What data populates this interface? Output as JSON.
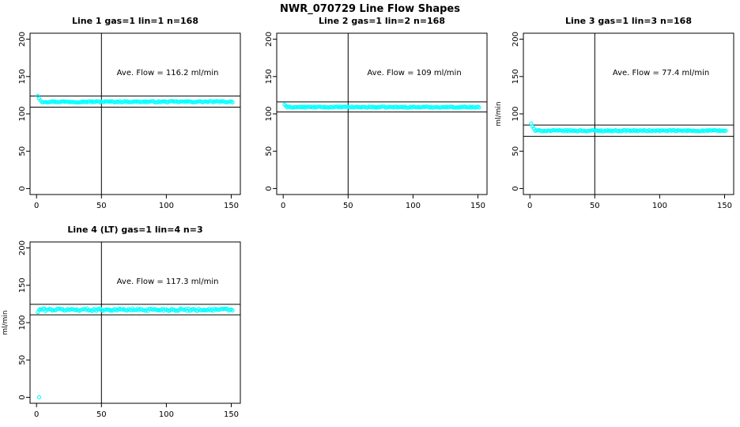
{
  "figure_title": "NWR_070729  Line Flow Shapes",
  "marker_color": "#00FFFF",
  "axis_color": "#000000",
  "chart_data": [
    {
      "type": "scatter",
      "title": "Line 1 gas=1 lin=1 n=168",
      "annotation": "Ave. Flow =  116.2  ml/min",
      "annotation_x": 101,
      "annotation_y": 152,
      "ave_flow": 116.2,
      "xlabel": "",
      "ylabel": "",
      "x_ticks": [
        0,
        50,
        100,
        150
      ],
      "y_ticks": [
        0,
        50,
        100,
        150,
        200
      ],
      "xlim": [
        -5,
        157
      ],
      "ylim": [
        -8,
        208
      ],
      "grid": false,
      "vline_x": 50,
      "hlines": [
        124,
        109
      ],
      "color": "#00FFFF",
      "marker": "open-circle",
      "series": {
        "name": "flow",
        "x_start": 1,
        "x_end": 151,
        "mean": 116.2,
        "noise": 0.9,
        "transient": [
          [
            1,
            124
          ],
          [
            2,
            120.5
          ],
          [
            3,
            118
          ]
        ],
        "outliers": []
      }
    },
    {
      "type": "scatter",
      "title": "Line 2 gas=1 lin=2 n=168",
      "annotation": "Ave. Flow =  109  ml/min",
      "annotation_x": 101,
      "annotation_y": 152,
      "ave_flow": 109,
      "xlabel": "",
      "ylabel": "",
      "x_ticks": [
        0,
        50,
        100,
        150
      ],
      "y_ticks": [
        0,
        50,
        100,
        150,
        200
      ],
      "xlim": [
        -5,
        157
      ],
      "ylim": [
        -8,
        208
      ],
      "grid": false,
      "vline_x": 50,
      "hlines": [
        116,
        102.5
      ],
      "color": "#00FFFF",
      "marker": "open-circle",
      "series": {
        "name": "flow",
        "x_start": 1,
        "x_end": 151,
        "mean": 109,
        "noise": 0.8,
        "transient": [
          [
            1,
            112.5
          ],
          [
            2,
            110.5
          ]
        ],
        "outliers": []
      }
    },
    {
      "type": "scatter",
      "title": "Line 3 gas=1 lin=3 n=168",
      "annotation": "Ave. Flow =  77.4  ml/min",
      "annotation_x": 101,
      "annotation_y": 152,
      "ave_flow": 77.4,
      "xlabel": "",
      "ylabel": "ml/min",
      "x_ticks": [
        0,
        50,
        100,
        150
      ],
      "y_ticks": [
        0,
        50,
        100,
        150,
        200
      ],
      "xlim": [
        -5,
        157
      ],
      "ylim": [
        -8,
        208
      ],
      "grid": false,
      "vline_x": 50,
      "hlines": [
        85,
        70
      ],
      "color": "#00FFFF",
      "marker": "open-circle",
      "series": {
        "name": "flow",
        "x_start": 1,
        "x_end": 151,
        "mean": 77.4,
        "noise": 0.9,
        "transient": [
          [
            1,
            87
          ],
          [
            2,
            83
          ],
          [
            3,
            80.5
          ]
        ],
        "outliers": []
      }
    },
    {
      "type": "scatter",
      "title": "Line 4 (LT) gas=1 lin=4 n=3",
      "annotation": "Ave. Flow =  117.3  ml/min",
      "annotation_x": 101,
      "annotation_y": 152,
      "ave_flow": 117.3,
      "xlabel": "",
      "ylabel": "ml/min",
      "x_ticks": [
        0,
        50,
        100,
        150
      ],
      "y_ticks": [
        0,
        50,
        100,
        150,
        200
      ],
      "xlim": [
        -5,
        157
      ],
      "ylim": [
        -8,
        208
      ],
      "grid": false,
      "vline_x": 50,
      "hlines": [
        124.5,
        110.5
      ],
      "color": "#00FFFF",
      "marker": "open-circle",
      "series": {
        "name": "flow",
        "x_start": 1,
        "x_end": 151,
        "mean": 117.3,
        "noise": 1.7,
        "transient": [
          [
            1,
            114
          ]
        ],
        "outliers": [
          [
            2,
            0
          ]
        ]
      }
    }
  ]
}
